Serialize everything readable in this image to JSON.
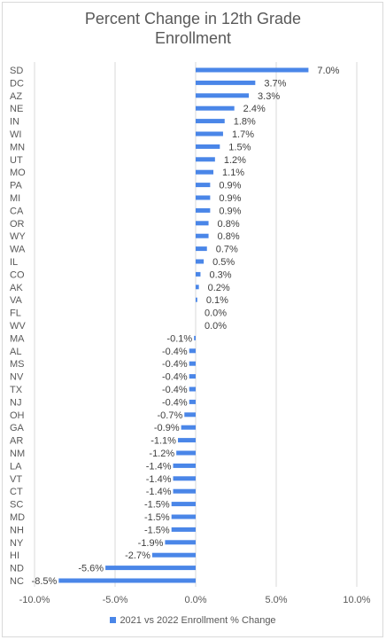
{
  "chart_data": {
    "type": "bar",
    "orientation": "horizontal",
    "title": "Percent Change in 12th Grade Enrollment",
    "title_lines": [
      "Percent Change in 12th Grade",
      "Enrollment"
    ],
    "xlabel": "",
    "ylabel": "",
    "xlim": [
      -10,
      10
    ],
    "x_ticks": [
      -10,
      -5,
      0,
      5,
      10
    ],
    "x_tick_labels": [
      "-10.0%",
      "-5.0%",
      "0.0%",
      "5.0%",
      "10.0%"
    ],
    "grid": true,
    "legend_position": "bottom",
    "bar_color": "#4a86e8",
    "categories": [
      "SD",
      "DC",
      "AZ",
      "NE",
      "IN",
      "WI",
      "MN",
      "UT",
      "MO",
      "PA",
      "MI",
      "CA",
      "OR",
      "WY",
      "WA",
      "IL",
      "CO",
      "AK",
      "VA",
      "FL",
      "WV",
      "MA",
      "AL",
      "MS",
      "NV",
      "TX",
      "NJ",
      "OH",
      "GA",
      "AR",
      "NM",
      "LA",
      "VT",
      "CT",
      "SC",
      "MD",
      "NH",
      "NY",
      "HI",
      "ND",
      "NC"
    ],
    "series": [
      {
        "name": "2021 vs 2022 Enrollment % Change",
        "values": [
          7.0,
          3.7,
          3.3,
          2.4,
          1.8,
          1.7,
          1.5,
          1.2,
          1.1,
          0.9,
          0.9,
          0.9,
          0.8,
          0.8,
          0.7,
          0.5,
          0.3,
          0.2,
          0.1,
          0.0,
          0.0,
          -0.1,
          -0.4,
          -0.4,
          -0.4,
          -0.4,
          -0.4,
          -0.7,
          -0.9,
          -1.1,
          -1.2,
          -1.4,
          -1.4,
          -1.4,
          -1.5,
          -1.5,
          -1.5,
          -1.9,
          -2.7,
          -5.6,
          -8.5
        ]
      }
    ]
  }
}
